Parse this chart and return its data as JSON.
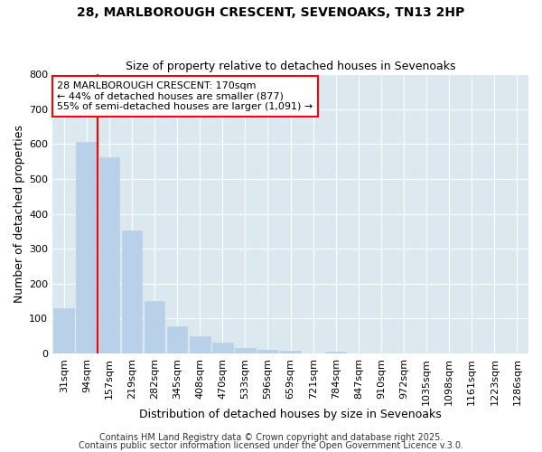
{
  "title1": "28, MARLBOROUGH CRESCENT, SEVENOAKS, TN13 2HP",
  "title2": "Size of property relative to detached houses in Sevenoaks",
  "xlabel": "Distribution of detached houses by size in Sevenoaks",
  "ylabel": "Number of detached properties",
  "bar_labels": [
    "31sqm",
    "94sqm",
    "157sqm",
    "219sqm",
    "282sqm",
    "345sqm",
    "408sqm",
    "470sqm",
    "533sqm",
    "596sqm",
    "659sqm",
    "721sqm",
    "784sqm",
    "847sqm",
    "910sqm",
    "972sqm",
    "1035sqm",
    "1098sqm",
    "1161sqm",
    "1223sqm",
    "1286sqm"
  ],
  "bar_values": [
    130,
    607,
    563,
    353,
    150,
    78,
    50,
    32,
    15,
    11,
    8,
    0,
    5,
    0,
    0,
    0,
    0,
    0,
    0,
    0,
    0
  ],
  "bar_color": "#b8d0e8",
  "bar_edgecolor": "#b8d0e8",
  "vline_color": "red",
  "annotation_text": "28 MARLBOROUGH CRESCENT: 170sqm\n← 44% of detached houses are smaller (877)\n55% of semi-detached houses are larger (1,091) →",
  "annotation_box_edgecolor": "red",
  "annotation_box_facecolor": "white",
  "ylim": [
    0,
    800
  ],
  "yticks": [
    0,
    100,
    200,
    300,
    400,
    500,
    600,
    700,
    800
  ],
  "footer1": "Contains HM Land Registry data © Crown copyright and database right 2025.",
  "footer2": "Contains public sector information licensed under the Open Government Licence v.3.0.",
  "fig_bg_color": "#ffffff",
  "plot_bg_color": "#dce8f0",
  "title1_fontsize": 10,
  "title2_fontsize": 9,
  "xlabel_fontsize": 9,
  "ylabel_fontsize": 9,
  "tick_fontsize": 8,
  "annotation_fontsize": 8,
  "footer_fontsize": 7
}
